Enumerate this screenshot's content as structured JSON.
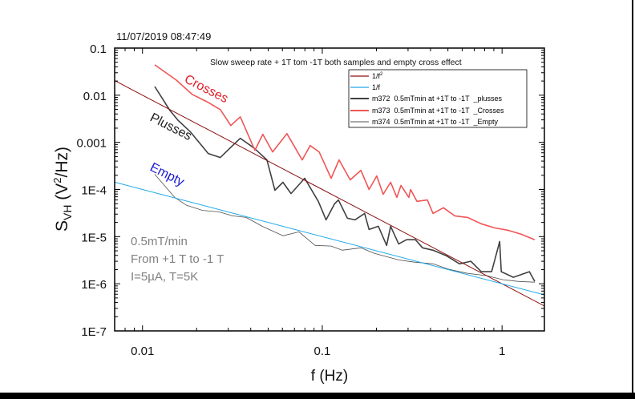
{
  "timestamp": "11/07/2019 08:47:49",
  "chart_data": {
    "type": "line",
    "title": "Slow sweep rate + 1T tom -1T  both samples and empty cross effect",
    "xlabel": "f (Hz)",
    "ylabel_main": "S",
    "ylabel_sub": "VH",
    "ylabel_rest": " (V",
    "ylabel_sup": "2",
    "ylabel_end": "/Hz)",
    "xscale": "log",
    "yscale": "log",
    "xlim": [
      0.007,
      1.72
    ],
    "ylim": [
      1e-07,
      0.1
    ],
    "grid": false,
    "legend_position": "top-right",
    "x_ticks": [
      {
        "v": 0.01,
        "label": "0.01"
      },
      {
        "v": 0.1,
        "label": "0.1"
      },
      {
        "v": 1,
        "label": "1"
      }
    ],
    "y_ticks": [
      {
        "v": 0.1,
        "label": "0.1"
      },
      {
        "v": 0.01,
        "label": "0.01"
      },
      {
        "v": 0.001,
        "label": "0.001"
      },
      {
        "v": 0.0001,
        "label": "1E-4"
      },
      {
        "v": 1e-05,
        "label": "1E-5"
      },
      {
        "v": 1e-06,
        "label": "1E-6"
      },
      {
        "v": 1e-07,
        "label": "1E-7"
      }
    ],
    "fit_lines": [
      {
        "name": "1/f²",
        "legend_main": "1/f",
        "legend_sup": "2",
        "coefficient": 1e-06,
        "exponent": 2,
        "color": "#8b1010"
      },
      {
        "name": "1/f",
        "legend_main": "1/f",
        "legend_sup": "",
        "coefficient": 1e-06,
        "exponent": 1,
        "color": "#20a8e8"
      }
    ],
    "series": [
      {
        "name": "m372  0.5mTmin at +1T to -1T  _plusses",
        "color": "#404040",
        "width": 1.6,
        "points": [
          [
            0.0117,
            0.0153
          ],
          [
            0.0142,
            0.00476
          ],
          [
            0.0157,
            0.00298
          ],
          [
            0.0185,
            0.00166
          ],
          [
            0.0232,
            0.000579
          ],
          [
            0.0271,
            0.000476
          ],
          [
            0.0307,
            0.00076
          ],
          [
            0.035,
            0.00122
          ],
          [
            0.0417,
            0.00076
          ],
          [
            0.0492,
            0.000424
          ],
          [
            0.0545,
            9.6e-05
          ],
          [
            0.0604,
            0.000142
          ],
          [
            0.067,
            8.2e-05
          ],
          [
            0.0798,
            0.000173
          ],
          [
            0.095,
            5.6e-05
          ],
          [
            0.105,
            2.27e-05
          ],
          [
            0.117,
            4.95e-05
          ],
          [
            0.123,
            6e-05
          ],
          [
            0.138,
            2.45e-05
          ],
          [
            0.152,
            2.27e-05
          ],
          [
            0.172,
            3.1e-05
          ],
          [
            0.182,
            1.42e-05
          ],
          [
            0.205,
            1.66e-05
          ],
          [
            0.228,
            6.5e-06
          ],
          [
            0.24,
            1.66e-05
          ],
          [
            0.266,
            7e-06
          ],
          [
            0.294,
            8.6e-06
          ],
          [
            0.33,
            8.6e-06
          ],
          [
            0.361,
            5.8e-06
          ],
          [
            0.413,
            5.15e-06
          ],
          [
            0.492,
            3.9e-06
          ],
          [
            0.58,
            2.65e-06
          ],
          [
            0.67,
            3e-06
          ],
          [
            0.766,
            1.8e-06
          ],
          [
            0.875,
            1.8e-06
          ],
          [
            0.97,
            7.9e-06
          ],
          [
            0.99,
            1.8e-06
          ],
          [
            1.155,
            1.37e-06
          ],
          [
            1.42,
            1.8e-06
          ],
          [
            1.52,
            1.12e-06
          ]
        ]
      },
      {
        "name": "m373  0.5mTmin at +1T to -1T  _Crosses",
        "color": "#f05555",
        "width": 1.6,
        "points": [
          [
            0.0117,
            0.0441
          ],
          [
            0.0154,
            0.021
          ],
          [
            0.0189,
            0.0104
          ],
          [
            0.0232,
            0.00703
          ],
          [
            0.0271,
            0.00495
          ],
          [
            0.031,
            0.00227
          ],
          [
            0.035,
            0.00348
          ],
          [
            0.0422,
            0.000677
          ],
          [
            0.0467,
            0.00148
          ],
          [
            0.0529,
            0.000626
          ],
          [
            0.0636,
            0.00153
          ],
          [
            0.0773,
            0.000424
          ],
          [
            0.0857,
            0.000855
          ],
          [
            0.096,
            0.000626
          ],
          [
            0.112,
            0.000173
          ],
          [
            0.124,
            0.000424
          ],
          [
            0.143,
            0.00016
          ],
          [
            0.164,
            0.000255
          ],
          [
            0.182,
            0.0001
          ],
          [
            0.201,
            0.000194
          ],
          [
            0.218,
            7.9e-05
          ],
          [
            0.24,
            0.000142
          ],
          [
            0.26,
            6.8e-05
          ],
          [
            0.274,
            0.000122
          ],
          [
            0.303,
            6.8e-05
          ],
          [
            0.31,
            0.0001
          ],
          [
            0.336,
            5.6e-05
          ],
          [
            0.384,
            6e-05
          ],
          [
            0.413,
            3.1e-05
          ],
          [
            0.472,
            4.1e-05
          ],
          [
            0.545,
            2.76e-05
          ],
          [
            0.643,
            2.55e-05
          ],
          [
            0.766,
            1.87e-05
          ],
          [
            0.912,
            1.53e-05
          ],
          [
            1.075,
            1.37e-05
          ],
          [
            1.28,
            1.12e-05
          ],
          [
            1.52,
            8.6e-06
          ]
        ]
      },
      {
        "name": "m374  0.5mTmin at +1T to -1T  _Empty",
        "color": "#505050",
        "width": 0.8,
        "points": [
          [
            0.0117,
            0.00021
          ],
          [
            0.0151,
            6.8e-05
          ],
          [
            0.0176,
            4.6e-05
          ],
          [
            0.0216,
            3.6e-05
          ],
          [
            0.0266,
            3.35e-05
          ],
          [
            0.0316,
            2.76e-05
          ],
          [
            0.0377,
            2.55e-05
          ],
          [
            0.0463,
            1.66e-05
          ],
          [
            0.0604,
            1.04e-05
          ],
          [
            0.0742,
            1.26e-05
          ],
          [
            0.0912,
            6.5e-06
          ],
          [
            0.112,
            6.3e-06
          ],
          [
            0.129,
            5.15e-06
          ],
          [
            0.164,
            5.8e-06
          ],
          [
            0.195,
            4.4e-06
          ],
          [
            0.266,
            3.2e-06
          ],
          [
            0.326,
            2.87e-06
          ],
          [
            0.413,
            2.65e-06
          ],
          [
            0.507,
            2.02e-06
          ],
          [
            0.643,
            1.66e-06
          ],
          [
            0.823,
            1.48e-06
          ],
          [
            1.01,
            1.22e-06
          ],
          [
            1.24,
            1.12e-06
          ],
          [
            1.52,
            1.08e-06
          ]
        ]
      }
    ],
    "annotations": [
      {
        "text": "Crosses",
        "color": "#e0202a"
      },
      {
        "text": "Plusses",
        "color": "#202020"
      },
      {
        "text": "Empty",
        "color": "#1a1ad0"
      }
    ],
    "info_lines": [
      "0.5mT/min",
      "From +1 T  to -1 T",
      "I=5µA, T=5K"
    ],
    "info_color": "#808080"
  }
}
